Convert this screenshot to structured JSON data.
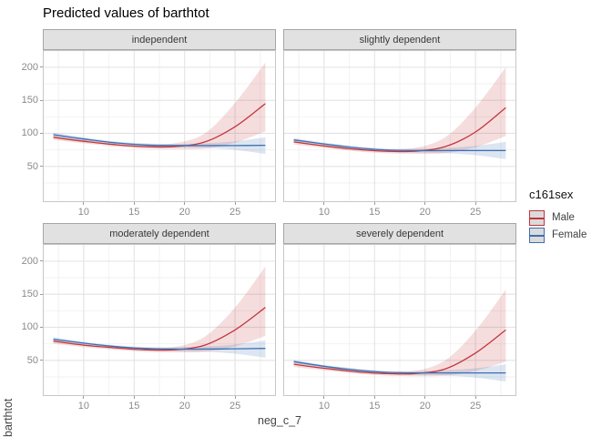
{
  "chart_data": {
    "type": "line",
    "title": "Predicted values of barthtot",
    "xlabel": "neg_c_7",
    "ylabel": "barthtot",
    "x": [
      7,
      10,
      13,
      16,
      19,
      22,
      25,
      28
    ],
    "xlim": [
      5.95,
      29.05
    ],
    "ylim": [
      -4,
      226
    ],
    "xticks": [
      10,
      15,
      20,
      25
    ],
    "yticks": [
      50,
      100,
      150,
      200
    ],
    "x_minor": [
      7.5,
      12.5,
      17.5,
      22.5,
      27.5
    ],
    "y_minor": [
      25,
      75,
      125,
      175,
      225
    ],
    "grid": true,
    "style": {
      "panel_background": "#FFFFFF",
      "grid_major": "#E3E3E3",
      "grid_minor": "#F2F2F2",
      "panel_border": "#C7C7C7",
      "strip_fill": "#E1E1E1",
      "strip_border": "#A6A6A6",
      "tick_color": "#9A9A9A",
      "ribbon_alpha_male": 0.17,
      "ribbon_alpha_female": 0.18,
      "line_width": 1.3
    },
    "legend": {
      "title": "c161sex",
      "position": "right",
      "items": [
        {
          "name": "Male",
          "color": "#C2363B"
        },
        {
          "name": "Female",
          "color": "#3C6FB2"
        }
      ]
    },
    "facets": [
      {
        "label": "independent",
        "series": [
          {
            "name": "Male",
            "line": [
              94,
              88,
              83,
              80,
              80,
              87,
              110,
              145
            ],
            "upper": [
              98,
              91,
              86,
              83,
              85,
              100,
              146,
              207
            ],
            "lower": [
              90,
              85,
              80,
              77,
              76,
              77,
              86,
              103
            ]
          },
          {
            "name": "Female",
            "line": [
              98,
              91.5,
              86,
              82.5,
              81.5,
              81.5,
              81.5,
              82
            ],
            "upper": [
              101,
              94,
              88,
              85,
              84,
              85,
              88,
              94
            ],
            "lower": [
              95,
              89,
              84,
              80,
              79,
              78,
              75,
              69
            ]
          }
        ]
      },
      {
        "label": "slightly dependent",
        "series": [
          {
            "name": "Male",
            "line": [
              87,
              81,
              76,
              73,
              73,
              80,
              102,
              139
            ],
            "upper": [
              91,
              84,
              79,
              76,
              78,
              94,
              139,
              200
            ],
            "lower": [
              83,
              78,
              73,
              70,
              69,
              70,
              79,
              96
            ]
          },
          {
            "name": "Female",
            "line": [
              90,
              84,
              78.5,
              75,
              74,
              74,
              74,
              74
            ],
            "upper": [
              93,
              86,
              81,
              77,
              77,
              78,
              81,
              87
            ],
            "lower": [
              87,
              82,
              76,
              72.5,
              71,
              70,
              67,
              61
            ]
          }
        ]
      },
      {
        "label": "moderately dependent",
        "series": [
          {
            "name": "Male",
            "line": [
              79,
              73,
              69,
              66,
              66,
              73,
              96,
              130
            ],
            "upper": [
              83,
              76,
              72,
              69,
              70,
              86,
              130,
              192
            ],
            "lower": [
              75,
              70,
              66,
              63,
              62,
              63,
              71,
              87
            ]
          },
          {
            "name": "Female",
            "line": [
              82,
              76,
              71,
              68,
              67,
              67,
              67.5,
              68
            ],
            "upper": [
              85,
              78,
              73,
              70,
              70,
              71,
              74,
              80
            ],
            "lower": [
              79,
              74,
              69,
              66,
              64,
              63,
              60,
              54
            ]
          }
        ]
      },
      {
        "label": "severely dependent",
        "series": [
          {
            "name": "Male",
            "line": [
              44,
              38,
              33,
              30,
              30,
              37,
              61,
              96
            ],
            "upper": [
              48,
              41,
              36,
              33,
              34,
              50,
              95,
              157
            ],
            "lower": [
              40,
              35,
              30,
              27,
              26,
              27,
              34,
              48
            ]
          },
          {
            "name": "Female",
            "line": [
              48,
              41,
              35.5,
              32,
              31,
              31,
              31,
              31
            ],
            "upper": [
              51,
              43,
              38,
              34,
              34,
              35,
              38,
              44
            ],
            "lower": [
              45,
              39,
              33,
              30,
              28,
              27,
              24,
              18
            ]
          }
        ]
      }
    ]
  }
}
